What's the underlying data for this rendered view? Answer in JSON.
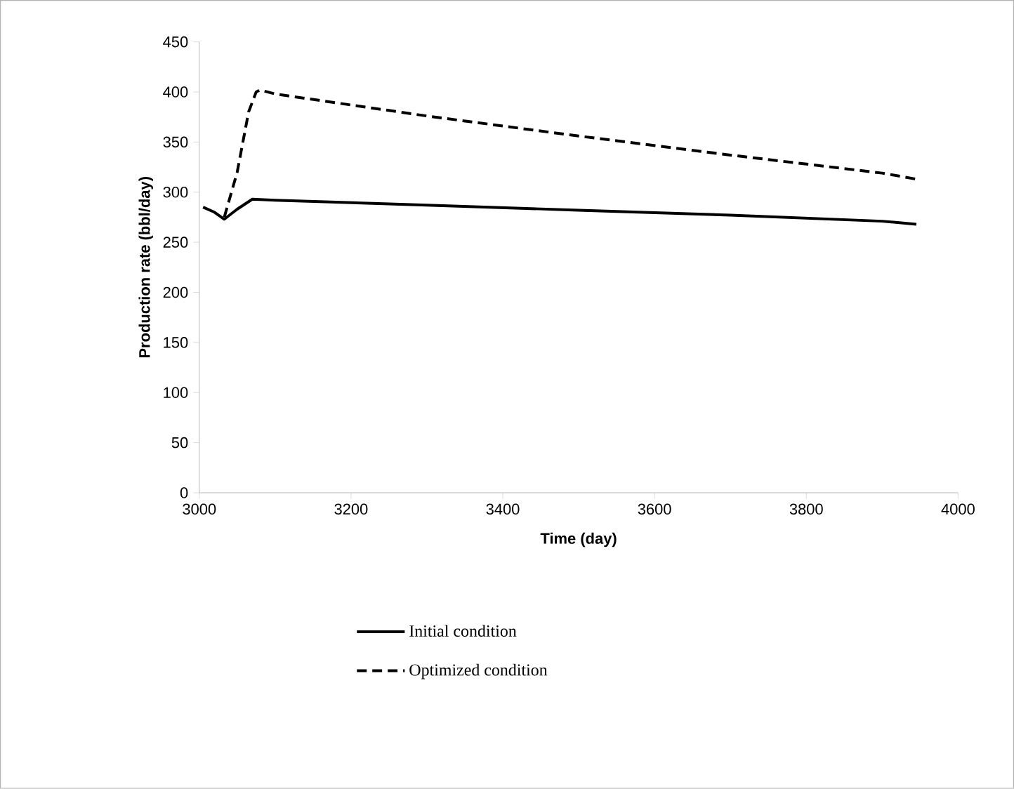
{
  "chart_data": {
    "type": "line",
    "xlabel": "Time (day)",
    "ylabel": "Production rate (bbl/day)",
    "xlim": [
      3000,
      4000
    ],
    "xticks": [
      3000,
      3200,
      3400,
      3600,
      3800,
      4000
    ],
    "ylim": [
      0,
      450
    ],
    "yticks": [
      0,
      50,
      100,
      150,
      200,
      250,
      300,
      350,
      400,
      450
    ],
    "grid": false,
    "legend": "bottom",
    "series": [
      {
        "name": "Initial condition",
        "color": "#000000",
        "line_style": "solid",
        "x": [
          3005,
          3020,
          3033,
          3050,
          3070,
          3100,
          3300,
          3500,
          3700,
          3900,
          3945
        ],
        "values": [
          285,
          280,
          273,
          283,
          293,
          292,
          287,
          282,
          277,
          271,
          268
        ]
      },
      {
        "name": "Optimized condition",
        "color": "#000000",
        "line_style": "dashed",
        "x": [
          3033,
          3050,
          3065,
          3075,
          3080,
          3100,
          3300,
          3500,
          3700,
          3900,
          3945
        ],
        "values": [
          275,
          320,
          380,
          400,
          402,
          398,
          376,
          356,
          337,
          319,
          313
        ]
      }
    ]
  }
}
